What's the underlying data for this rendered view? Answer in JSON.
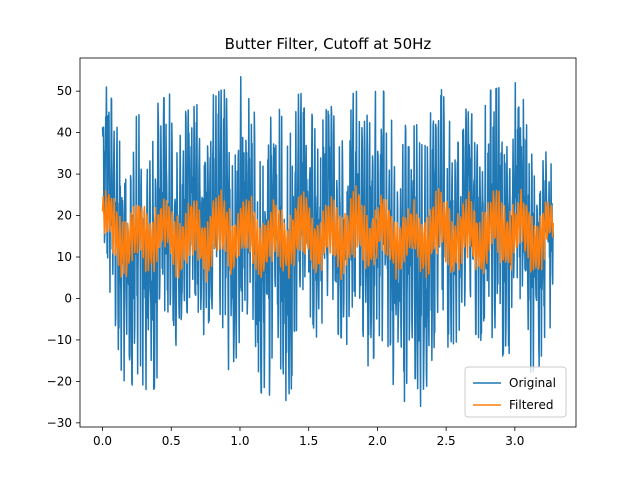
{
  "chart_data": {
    "type": "line",
    "title": "Butter Filter, Cutoff at 50Hz",
    "xlabel": "",
    "ylabel": "",
    "xlim": [
      -0.164,
      3.445
    ],
    "ylim": [
      -31.0,
      58.0
    ],
    "xticks": [
      0.0,
      0.5,
      1.0,
      1.5,
      2.0,
      2.5,
      3.0
    ],
    "xtick_labels": [
      "0.0",
      "0.5",
      "1.0",
      "1.5",
      "2.0",
      "2.5",
      "3.0"
    ],
    "yticks": [
      -30,
      -20,
      -10,
      0,
      10,
      20,
      30,
      40,
      50
    ],
    "ytick_labels": [
      "−30",
      "−20",
      "−10",
      "0",
      "10",
      "20",
      "30",
      "40",
      "50"
    ],
    "grid": false,
    "legend_location": "lower right",
    "x_range_of_data": [
      0.0,
      3.28
    ],
    "series": [
      {
        "name": "Original",
        "color": "#1f77b4",
        "description_of_values": "dense noisy periodic signal, mostly between about -27 and 54",
        "x": [
          0.0,
          0.1,
          0.2,
          0.3,
          0.4,
          0.5,
          0.6,
          0.7,
          0.8,
          0.9,
          1.0,
          1.1,
          1.2,
          1.3,
          1.4,
          1.5,
          1.6,
          1.7,
          1.8,
          1.9,
          2.0,
          2.1,
          2.2,
          2.3,
          2.4,
          2.5,
          2.6,
          2.7,
          2.8,
          2.9,
          3.0,
          3.1,
          3.2,
          3.28
        ],
        "y_min_envelope": [
          8,
          -13,
          -25,
          -27,
          -20,
          -12,
          -10,
          -8,
          -10,
          -18,
          -13,
          -20,
          -25,
          -27,
          -20,
          -12,
          -10,
          -8,
          -12,
          -18,
          -13,
          -20,
          -25,
          -27,
          -20,
          -12,
          -10,
          -8,
          -12,
          -18,
          -13,
          -18,
          -17,
          -10
        ],
        "y_max_envelope": [
          54,
          45,
          43,
          45,
          47,
          50,
          45,
          47,
          49,
          51,
          54,
          45,
          43,
          46,
          49,
          50,
          45,
          47,
          49,
          51,
          54,
          45,
          43,
          45,
          49,
          51,
          45,
          47,
          50,
          51,
          54,
          45,
          42,
          30
        ]
      },
      {
        "name": "Filtered",
        "color": "#ff7f0e",
        "description_of_values": "smoother oscillating signal, mostly between about 2 and 31",
        "x": [
          0.0,
          0.1,
          0.2,
          0.3,
          0.4,
          0.5,
          0.6,
          0.7,
          0.8,
          0.9,
          1.0,
          1.1,
          1.2,
          1.3,
          1.4,
          1.5,
          1.6,
          1.7,
          1.8,
          1.9,
          2.0,
          2.1,
          2.2,
          2.3,
          2.4,
          2.5,
          2.6,
          2.7,
          2.8,
          2.9,
          3.0,
          3.1,
          3.2,
          3.28
        ],
        "y_min_envelope": [
          12,
          3,
          3,
          4,
          5,
          4,
          3,
          3,
          3,
          3,
          5,
          3,
          2,
          3,
          4,
          4,
          3,
          3,
          3,
          3,
          5,
          3,
          3,
          3,
          4,
          4,
          3,
          3,
          3,
          3,
          5,
          3,
          3,
          12
        ],
        "y_max_envelope": [
          28,
          28,
          25,
          26,
          27,
          28,
          25,
          27,
          28,
          29,
          28,
          27,
          25,
          26,
          27,
          28,
          25,
          27,
          28,
          29,
          28,
          27,
          25,
          26,
          27,
          29,
          26,
          28,
          28,
          30,
          28,
          27,
          27,
          24
        ]
      }
    ]
  }
}
